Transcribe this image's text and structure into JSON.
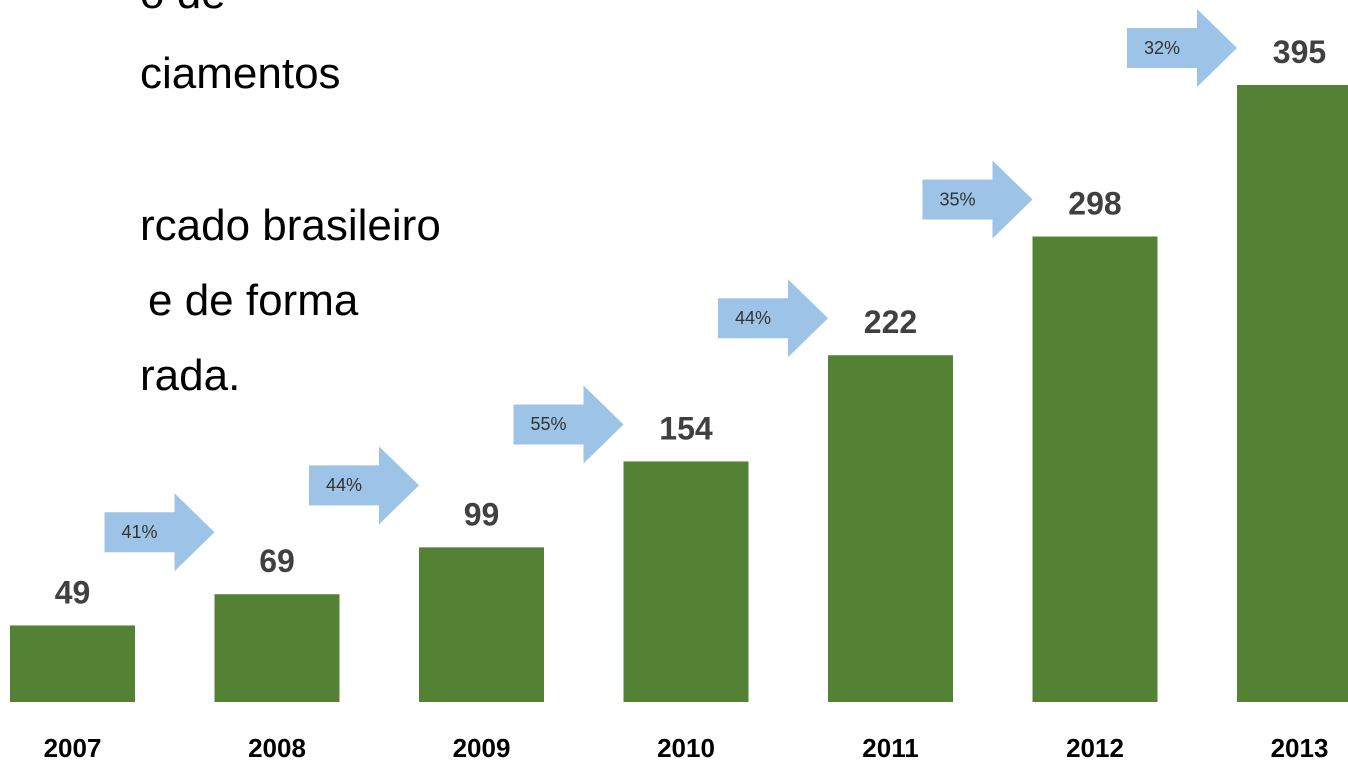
{
  "chart_data": {
    "type": "bar",
    "text_lines": [
      "o de",
      "ciamentos",
      "rcado brasileiro",
      "e de forma",
      "rada."
    ],
    "categories": [
      "2007",
      "2008",
      "2009",
      "2010",
      "2011",
      "2012",
      "2013"
    ],
    "values": [
      49,
      69,
      99,
      154,
      222,
      298,
      395
    ],
    "color": "#548235",
    "growth": {
      "values": [
        null,
        41,
        44,
        55,
        44,
        35,
        32
      ],
      "value_labels": [
        null,
        "41%",
        "44%",
        "55%",
        "44%",
        "35%",
        "32%"
      ],
      "color": "#9dc3e6"
    }
  }
}
